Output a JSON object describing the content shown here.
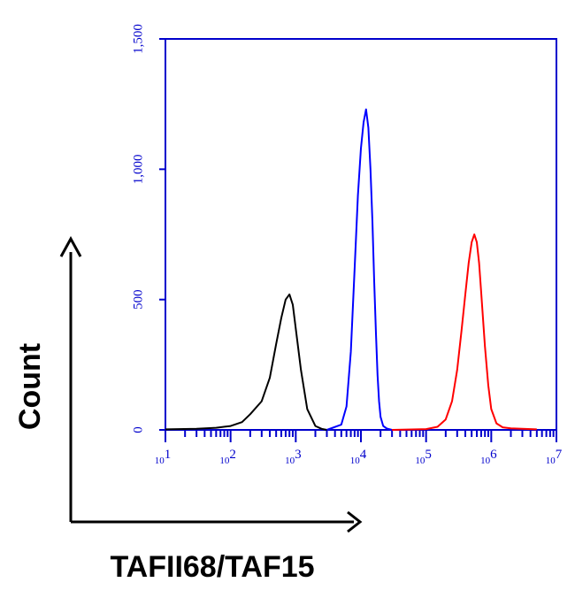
{
  "chart_data": {
    "type": "line",
    "xlabel": "TAFII68/TAF15",
    "ylabel": "Count",
    "x_scale": "log",
    "xlim": [
      10,
      10000000
    ],
    "ylim": [
      0,
      1500
    ],
    "y_ticks": [
      {
        "value": 0,
        "label": "0"
      },
      {
        "value": 500,
        "label": "500"
      },
      {
        "value": 1000,
        "label": "1,000"
      },
      {
        "value": 1500,
        "label": "1,500"
      }
    ],
    "x_ticks": [
      {
        "value": 10,
        "base": "10",
        "exp": "1"
      },
      {
        "value": 100,
        "base": "10",
        "exp": "2"
      },
      {
        "value": 1000,
        "base": "10",
        "exp": "3"
      },
      {
        "value": 10000,
        "base": "10",
        "exp": "4"
      },
      {
        "value": 100000,
        "base": "10",
        "exp": "5"
      },
      {
        "value": 1000000,
        "base": "10",
        "exp": "6"
      },
      {
        "value": 10000000,
        "base": "10",
        "exp": "7"
      }
    ],
    "grid": false,
    "legend": "none",
    "colors": {
      "axis": "#0000cc",
      "frame": "#0000cc"
    },
    "series": [
      {
        "color": "#000000",
        "x": [
          10,
          30,
          60,
          100,
          150,
          200,
          300,
          400,
          500,
          600,
          700,
          800,
          900,
          1000,
          1200,
          1500,
          2000,
          2500,
          3000
        ],
        "y": [
          2,
          4,
          8,
          15,
          30,
          60,
          110,
          200,
          330,
          430,
          500,
          520,
          480,
          390,
          230,
          80,
          15,
          4,
          0
        ]
      },
      {
        "color": "#0000ff",
        "x": [
          3000,
          5000,
          6000,
          7000,
          8000,
          9000,
          10000,
          11000,
          12000,
          13000,
          14000,
          15000,
          16000,
          17000,
          18000,
          19000,
          20000,
          22000,
          25000,
          30000
        ],
        "y": [
          0,
          20,
          90,
          300,
          620,
          900,
          1080,
          1180,
          1230,
          1160,
          1000,
          800,
          570,
          370,
          210,
          110,
          50,
          15,
          5,
          0
        ]
      },
      {
        "color": "#ff0000",
        "x": [
          30000,
          100000,
          150000,
          200000,
          250000,
          300000,
          350000,
          400000,
          450000,
          500000,
          550000,
          600000,
          650000,
          700000,
          800000,
          900000,
          1000000,
          1200000,
          1500000,
          2000000,
          3000000,
          5000000
        ],
        "y": [
          0,
          3,
          12,
          40,
          110,
          230,
          380,
          520,
          640,
          720,
          750,
          720,
          640,
          530,
          320,
          170,
          80,
          25,
          10,
          6,
          4,
          2
        ]
      }
    ]
  }
}
